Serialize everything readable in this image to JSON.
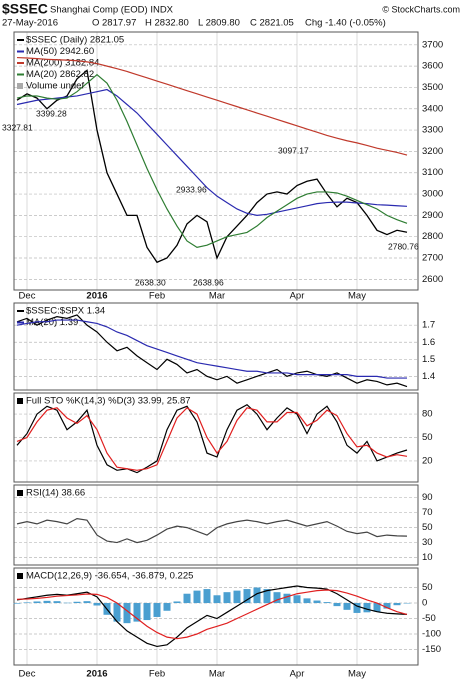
{
  "header": {
    "title": "$SSEC",
    "subtitle": "Shanghai Comp (EOD) INDX",
    "source": "© StockCharts.com",
    "date": "27-May-2016",
    "open": "O 2817.97",
    "high": "H 2832.80",
    "low": "L 2809.80",
    "close": "C 2821.05",
    "change": "Chg -1.40 (-0.05%)"
  },
  "chart_data": [
    {
      "type": "line",
      "categories": [
        null,
        "Dec",
        null,
        null,
        null,
        null,
        null,
        null,
        "2016",
        null,
        null,
        null,
        null,
        null,
        "Feb",
        null,
        null,
        null,
        null,
        null,
        "Mar",
        null,
        null,
        null,
        null,
        null,
        null,
        null,
        "Apr",
        null,
        null,
        null,
        null,
        null,
        "May",
        null,
        null,
        null,
        null,
        null
      ],
      "ylim": [
        2550,
        3760
      ],
      "yticks": [
        2600,
        2700,
        2800,
        2900,
        3000,
        3100,
        3200,
        3300,
        3400,
        3500,
        3600,
        3700
      ],
      "legend_extra": "Volume undef",
      "annotations": [
        "3327.81",
        "3399.28",
        "2638.30",
        "2933.96",
        "2638.96",
        "3097.17",
        "2780.76"
      ],
      "series": [
        {
          "name": "$SSEC (Daily) 2821.05",
          "color": "#000000",
          "values": [
            3440,
            3470,
            3450,
            3400,
            3440,
            3460,
            3540,
            3580,
            3300,
            3100,
            3000,
            2900,
            2900,
            2750,
            2680,
            2700,
            2760,
            2860,
            2900,
            2870,
            2700,
            2800,
            2850,
            2900,
            2960,
            3000,
            3010,
            3000,
            3040,
            3060,
            3070,
            3000,
            2940,
            2980,
            2960,
            2900,
            2830,
            2810,
            2830,
            2821.05
          ]
        },
        {
          "name": "MA(50) 2942.60",
          "color": "#2a2ab0",
          "values": [
            3420,
            3430,
            3440,
            3445,
            3450,
            3455,
            3460,
            3470,
            3480,
            3490,
            3460,
            3420,
            3380,
            3330,
            3280,
            3230,
            3180,
            3130,
            3080,
            3030,
            2990,
            2960,
            2930,
            2910,
            2900,
            2905,
            2915,
            2925,
            2935,
            2945,
            2955,
            2960,
            2962,
            2962,
            2958,
            2955,
            2950,
            2948,
            2945,
            2942.6
          ]
        },
        {
          "name": "MA(200) 3182.84",
          "color": "#c0392b",
          "values": [
            3640,
            3638,
            3635,
            3632,
            3630,
            3628,
            3625,
            3620,
            3612,
            3600,
            3588,
            3575,
            3560,
            3545,
            3530,
            3515,
            3500,
            3485,
            3470,
            3455,
            3440,
            3425,
            3410,
            3395,
            3380,
            3365,
            3350,
            3335,
            3320,
            3305,
            3290,
            3275,
            3262,
            3250,
            3240,
            3228,
            3215,
            3205,
            3195,
            3182.84
          ]
        },
        {
          "name": "MA(20) 2862.82",
          "color": "#2e7d32",
          "values": [
            3450,
            3460,
            3460,
            3450,
            3445,
            3450,
            3480,
            3520,
            3560,
            3520,
            3440,
            3340,
            3230,
            3120,
            3020,
            2930,
            2850,
            2780,
            2750,
            2760,
            2780,
            2800,
            2810,
            2820,
            2850,
            2890,
            2920,
            2950,
            2980,
            3000,
            3010,
            3010,
            3005,
            2990,
            2970,
            2950,
            2930,
            2900,
            2880,
            2862.82
          ]
        }
      ]
    },
    {
      "type": "line",
      "ylim": [
        1.32,
        1.83
      ],
      "yticks": [
        1.4,
        1.5,
        1.6,
        1.7
      ],
      "series": [
        {
          "name": "$SSEC:$SPX 1.34",
          "color": "#000000",
          "values": [
            1.72,
            1.74,
            1.7,
            1.73,
            1.75,
            1.74,
            1.76,
            1.7,
            1.66,
            1.6,
            1.55,
            1.57,
            1.52,
            1.48,
            1.44,
            1.5,
            1.47,
            1.42,
            1.44,
            1.4,
            1.38,
            1.4,
            1.36,
            1.38,
            1.4,
            1.42,
            1.44,
            1.4,
            1.42,
            1.43,
            1.41,
            1.4,
            1.42,
            1.39,
            1.36,
            1.38,
            1.37,
            1.35,
            1.36,
            1.34
          ]
        },
        {
          "name": "MA(20) 1.39",
          "color": "#2a2ab0",
          "values": [
            1.7,
            1.71,
            1.72,
            1.72,
            1.73,
            1.73,
            1.73,
            1.72,
            1.71,
            1.69,
            1.66,
            1.64,
            1.61,
            1.58,
            1.56,
            1.54,
            1.52,
            1.5,
            1.48,
            1.47,
            1.46,
            1.45,
            1.44,
            1.43,
            1.43,
            1.42,
            1.42,
            1.42,
            1.41,
            1.41,
            1.41,
            1.41,
            1.41,
            1.41,
            1.4,
            1.4,
            1.4,
            1.39,
            1.39,
            1.39
          ]
        }
      ]
    },
    {
      "type": "line",
      "title": "Full STO %K(14,3) %D(3) 33.99, 25.87",
      "ylim": [
        -7,
        107
      ],
      "yticks": [
        20,
        50,
        80
      ],
      "series": [
        {
          "name": "%K",
          "color": "#000000",
          "values": [
            40,
            55,
            80,
            90,
            85,
            60,
            70,
            85,
            40,
            15,
            8,
            10,
            5,
            12,
            20,
            60,
            85,
            90,
            70,
            30,
            25,
            60,
            85,
            92,
            80,
            60,
            75,
            88,
            80,
            55,
            80,
            90,
            70,
            40,
            30,
            45,
            20,
            25,
            30,
            33.99
          ]
        },
        {
          "name": "%D",
          "color": "#e02020",
          "values": [
            45,
            50,
            70,
            85,
            88,
            75,
            68,
            78,
            60,
            30,
            12,
            10,
            8,
            10,
            15,
            45,
            75,
            88,
            80,
            50,
            30,
            45,
            72,
            88,
            85,
            70,
            70,
            82,
            82,
            65,
            72,
            85,
            78,
            55,
            38,
            40,
            30,
            25,
            28,
            25.87
          ]
        }
      ]
    },
    {
      "type": "line",
      "title": "RSI(14) 38.66",
      "ylim": [
        0,
        107
      ],
      "yticks": [
        10,
        30,
        50,
        70,
        90
      ],
      "series": [
        {
          "name": "RSI",
          "color": "#444444",
          "values": [
            55,
            58,
            55,
            60,
            58,
            55,
            62,
            60,
            40,
            32,
            30,
            35,
            30,
            33,
            40,
            48,
            52,
            50,
            45,
            40,
            50,
            55,
            58,
            60,
            58,
            55,
            58,
            60,
            56,
            52,
            55,
            58,
            52,
            45,
            42,
            44,
            38,
            40,
            39,
            38.66
          ]
        }
      ]
    },
    {
      "type": "line",
      "title": "MACD(12,26,9) -36.654, -36.879, 0.225",
      "categories": [
        null,
        "Dec",
        null,
        null,
        null,
        null,
        null,
        null,
        "2016",
        null,
        null,
        null,
        null,
        null,
        "Feb",
        null,
        null,
        null,
        null,
        null,
        "Mar",
        null,
        null,
        null,
        null,
        null,
        null,
        null,
        "Apr",
        null,
        null,
        null,
        null,
        null,
        "May",
        null,
        null,
        null,
        null,
        null
      ],
      "ylim": [
        -200,
        113
      ],
      "yticks": [
        50,
        0,
        -50,
        -100,
        -150
      ],
      "series": [
        {
          "name": "Histogram",
          "type": "bar",
          "color": "#4a9fd0",
          "values": [
            -2,
            2,
            5,
            7,
            6,
            1,
            4,
            6,
            -8,
            -38,
            -60,
            -65,
            -60,
            -55,
            -45,
            -25,
            5,
            30,
            40,
            45,
            25,
            35,
            40,
            45,
            50,
            45,
            35,
            30,
            25,
            15,
            8,
            3,
            -10,
            -22,
            -32,
            -30,
            -28,
            -18,
            -7,
            0.225
          ]
        },
        {
          "name": "MACD",
          "color": "#000000",
          "values": [
            10,
            15,
            20,
            25,
            28,
            25,
            30,
            35,
            20,
            -20,
            -60,
            -90,
            -110,
            -130,
            -140,
            -135,
            -110,
            -80,
            -60,
            -40,
            -50,
            -30,
            -10,
            10,
            30,
            40,
            45,
            50,
            55,
            50,
            48,
            45,
            30,
            10,
            -10,
            -20,
            -28,
            -33,
            -35,
            -36.654
          ]
        },
        {
          "name": "Signal",
          "color": "#e02020",
          "values": [
            12,
            13,
            15,
            18,
            22,
            24,
            26,
            29,
            28,
            18,
            0,
            -25,
            -50,
            -75,
            -95,
            -110,
            -115,
            -110,
            -100,
            -85,
            -75,
            -65,
            -50,
            -35,
            -20,
            -5,
            10,
            20,
            30,
            35,
            40,
            42,
            40,
            32,
            22,
            10,
            0,
            -15,
            -28,
            -36.879
          ]
        }
      ]
    }
  ]
}
